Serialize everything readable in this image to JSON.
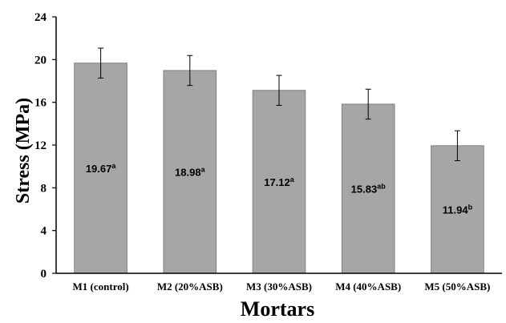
{
  "chart_data": {
    "type": "bar",
    "title": "",
    "xlabel": "Mortars",
    "ylabel": "Stress (MPa)",
    "ylim": [
      0,
      24
    ],
    "yticks": [
      0,
      4,
      8,
      12,
      16,
      20,
      24
    ],
    "grid": false,
    "legend": "none",
    "categories": [
      "M1 (control)",
      "M2 (20%ASB)",
      "M3 (30%ASB)",
      "M4 (40%ASB)",
      "M5 (50%ASB)"
    ],
    "values": [
      19.67,
      18.98,
      17.12,
      15.83,
      11.94
    ],
    "errors": [
      1.4,
      1.4,
      1.4,
      1.4,
      1.4
    ],
    "data_labels": [
      {
        "value": "19.67",
        "superscript": "a"
      },
      {
        "value": "18.98",
        "superscript": "a"
      },
      {
        "value": "17.12",
        "superscript": "a"
      },
      {
        "value": "15.83",
        "superscript": "ab"
      },
      {
        "value": "11.94",
        "superscript": "b"
      }
    ],
    "bar_color": "#a6a6a6",
    "bar_edge_color": "#808080"
  }
}
